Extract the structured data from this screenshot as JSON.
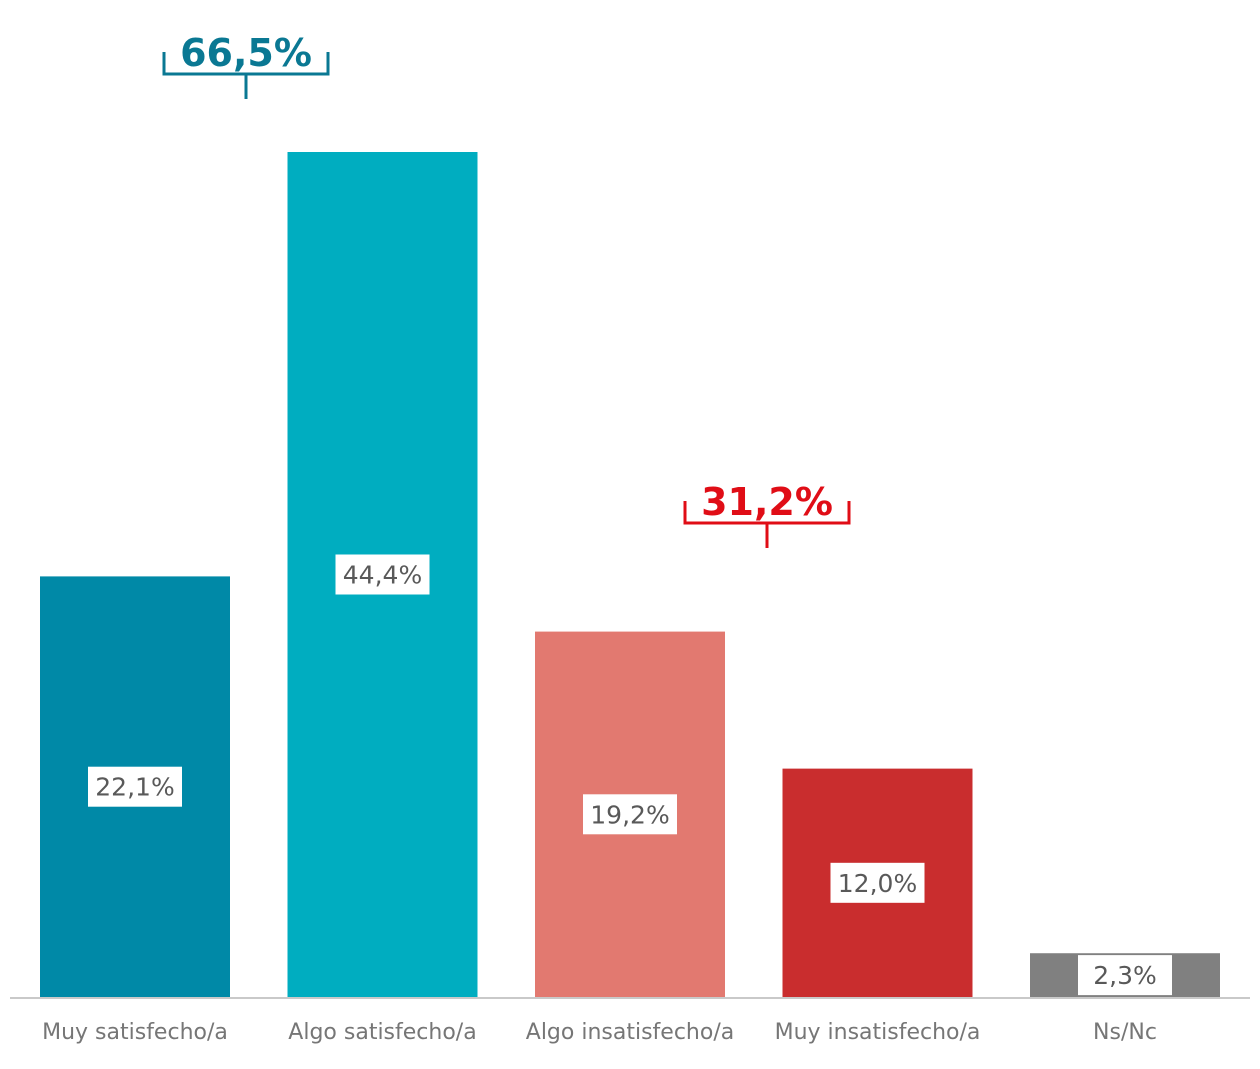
{
  "chart_data": {
    "type": "bar",
    "categories": [
      "Muy satisfecho/a",
      "Algo satisfecho/a",
      "Algo insatisfecho/a",
      "Muy insatisfecho/a",
      "Ns/Nc"
    ],
    "values": [
      22.1,
      44.4,
      19.2,
      12.0,
      2.3
    ],
    "data_labels": [
      "22,1%",
      "44,4%",
      "19,2%",
      "12,0%",
      "2,3%"
    ],
    "bar_colors": [
      "#0089a7",
      "#00adc0",
      "#e27970",
      "#c92d2e",
      "#808080"
    ],
    "ylim": [
      0,
      44.4
    ],
    "grid": false,
    "annotations": [
      {
        "text": "66,5%",
        "color": "#0a7893",
        "spans": [
          0,
          1
        ]
      },
      {
        "text": "31,2%",
        "color": "#e00d16",
        "spans": [
          2,
          3
        ]
      }
    ]
  }
}
